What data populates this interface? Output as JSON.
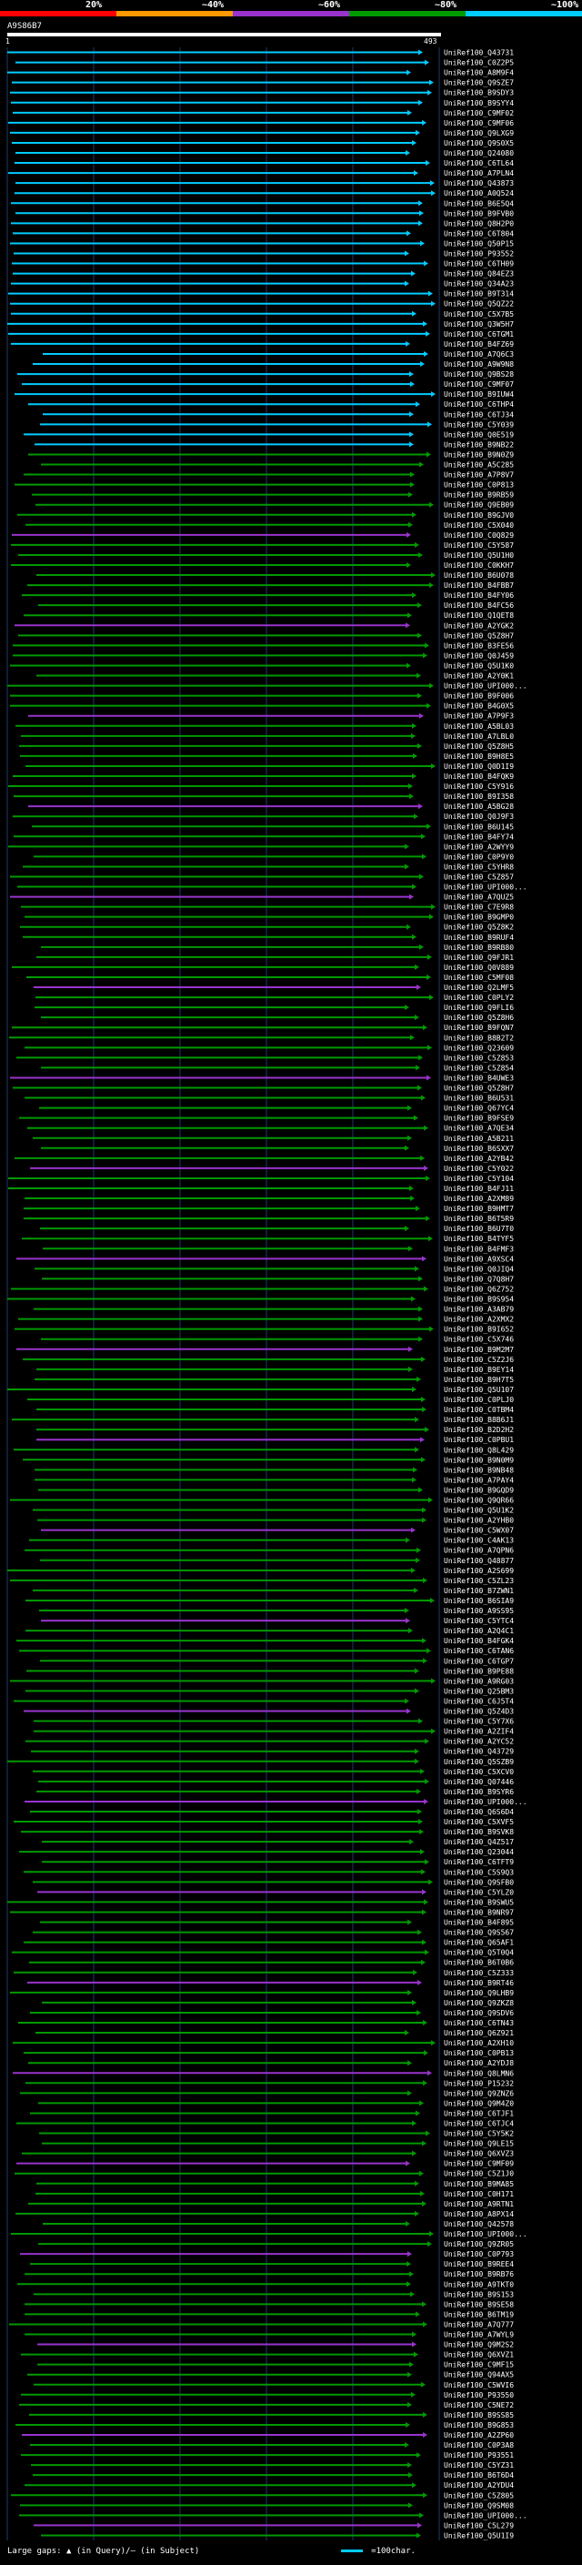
{
  "legend": {
    "labels": [
      "20%",
      "~40%",
      "~60%",
      "~80%",
      "~100%"
    ],
    "colors": [
      "#ff0000",
      "#ff9900",
      "#9933cc",
      "#009900",
      "#00ccff"
    ]
  },
  "query": {
    "id": "A9S86B7",
    "start": "1",
    "end": "493"
  },
  "hits": [
    "UniRef100_Q43731",
    "UniRef100_C0Z2P5",
    "UniRef100_A8M9F4",
    "UniRef100_Q9SZE7",
    "UniRef100_B9SDY3",
    "UniRef100_B9SYY4",
    "UniRef100_C9MF02",
    "UniRef100_C9MF06",
    "UniRef100_Q9LXG9",
    "UniRef100_Q9S0X5",
    "UniRef100_Q24080",
    "UniRef100_C6TL64",
    "UniRef100_A7PLN4",
    "UniRef100_Q43873",
    "UniRef100_A0Q524",
    "UniRef100_B6E5Q4",
    "UniRef100_B9FVB0",
    "UniRef100_Q8H2P0",
    "UniRef100_C6T804",
    "UniRef100_Q50P15",
    "UniRef100_P93552",
    "UniRef100_C6TH09",
    "UniRef100_Q84EZ3",
    "UniRef100_Q34A23",
    "UniRef100_B9T314",
    "UniRef100_Q5QZ22",
    "UniRef100_C5X7B5",
    "UniRef100_Q3W5H7",
    "UniRef100_C6TGM1",
    "UniRef100_B4FZ69",
    "UniRef100_A7Q6C3",
    "UniRef100_A9W9N8",
    "UniRef100_Q9BS28",
    "UniRef100_C9MF07",
    "UniRef100_B9IUW4",
    "UniRef100_C6THP4",
    "UniRef100_C6TJ34",
    "UniRef100_C5Y039",
    "UniRef100_Q0E519",
    "UniRef100_B9NB22",
    "UniRef100_B9N0Z9",
    "UniRef100_A5C285",
    "UniRef100_A7P8V7",
    "UniRef100_C0P813",
    "UniRef100_B9RB59",
    "UniRef100_Q9EB09",
    "UniRef100_B9GJV0",
    "UniRef100_C5X040",
    "UniRef100_C0Q829",
    "UniRef100_C5Y587",
    "UniRef100_Q5U1H0",
    "UniRef100_C0KKH7",
    "UniRef100_B6U078",
    "UniRef100_B4FBB7",
    "UniRef100_B4FY06",
    "UniRef100_B4FC56",
    "UniRef100_Q1QET8",
    "UniRef100_A2YGK2",
    "UniRef100_Q5Z8H7",
    "UniRef100_B3FE56",
    "UniRef100_Q0J459",
    "UniRef100_Q5U1K0",
    "UniRef100_A2Y0K1",
    "UniRef100_UPI000...",
    "UniRef100_B9F006",
    "UniRef100_B4G0X5",
    "UniRef100_A7P9F3",
    "UniRef100_A5BL03",
    "UniRef100_A7LBL0",
    "UniRef100_Q5Z8H5",
    "UniRef100_B9H8E5",
    "UniRef100_Q0D1I9",
    "UniRef100_B4FQK9",
    "UniRef100_C5Y916",
    "UniRef100_B9I358",
    "UniRef100_A5BG28",
    "UniRef100_Q0J9F3",
    "UniRef100_B6U145",
    "UniRef100_B4FY74",
    "UniRef100_A2WYY9",
    "UniRef100_C0P9Y0",
    "UniRef100_C5YHR8",
    "UniRef100_C5Z857",
    "UniRef100_UPI000...",
    "UniRef100_A7QUZ5",
    "UniRef100_C7E9R8",
    "UniRef100_B9GMP0",
    "UniRef100_Q5Z8K2",
    "UniRef100_B9RUF4",
    "UniRef100_B9RB80",
    "UniRef100_Q9FJR1",
    "UniRef100_Q0V889",
    "UniRef100_C5MF08",
    "UniRef100_Q2LMF5",
    "UniRef100_C0PLY2",
    "UniRef100_Q9FLI6",
    "UniRef100_Q5Z8H6",
    "UniRef100_B9FQN7",
    "UniRef100_B8B2T2",
    "UniRef100_Q23609",
    "UniRef100_C5Z853",
    "UniRef100_C5Z854",
    "UniRef100_B4UWE3",
    "UniRef100_Q5Z8H7",
    "UniRef100_B6U531",
    "UniRef100_Q67YC4",
    "UniRef100_B9FSE9",
    "UniRef100_A7QE34",
    "UniRef100_A5B211",
    "UniRef100_B6SXX7",
    "UniRef100_A2YB42",
    "UniRef100_C5Y022",
    "UniRef100_C5Y104",
    "UniRef100_B4FJ11",
    "UniRef100_A2XM89",
    "UniRef100_B9HMT7",
    "UniRef100_B6T5R9",
    "UniRef100_B6U7T0",
    "UniRef100_B4TYF5",
    "UniRef100_B4FMF3",
    "UniRef100_A9XSC4",
    "UniRef100_Q0JIQ4",
    "UniRef100_Q7Q8H7",
    "UniRef100_Q6Z752",
    "UniRef100_B9S954",
    "UniRef100_A3AB79",
    "UniRef100_A2XMX2",
    "UniRef100_B9I652",
    "UniRef100_C5X746",
    "UniRef100_B9M2M7",
    "UniRef100_C5Z2J6",
    "UniRef100_B9EY14",
    "UniRef100_B9H7T5",
    "UniRef100_Q5U107",
    "UniRef100_C0PLJ0",
    "UniRef100_C0TBM4",
    "UniRef100_B8B6J1",
    "UniRef100_B2D2H2",
    "UniRef100_C0PBU1",
    "UniRef100_Q8L429",
    "UniRef100_B9N0M9",
    "UniRef100_B9NB48",
    "UniRef100_A7PAY4",
    "UniRef100_B9GQD9",
    "UniRef100_Q9QR66",
    "UniRef100_Q5U1K2",
    "UniRef100_A2YHB0",
    "UniRef100_C5WX07",
    "UniRef100_C4AK13",
    "UniRef100_A7QPN6",
    "UniRef100_Q48877",
    "UniRef100_A2S699",
    "UniRef100_C5ZL23",
    "UniRef100_B7ZWN1",
    "UniRef100_B6SIA9",
    "UniRef100_A9SS95",
    "UniRef100_C5YTC4",
    "UniRef100_A2Q4C1",
    "UniRef100_B4FGK4",
    "UniRef100_C6TAN6",
    "UniRef100_C6TGP7",
    "UniRef100_B9PE88",
    "UniRef100_A9RG03",
    "UniRef100_Q25BM3",
    "UniRef100_C6J5T4",
    "UniRef100_Q5Z4D3",
    "UniRef100_C5Y7X6",
    "UniRef100_A2ZIF4",
    "UniRef100_A2YC52",
    "UniRef100_Q43729",
    "UniRef100_Q5SZB9",
    "UniRef100_C5XCV0",
    "UniRef100_Q07446",
    "UniRef100_B9SYR6",
    "UniRef100_UPI000...",
    "UniRef100_Q6S6D4",
    "UniRef100_C5XVF5",
    "UniRef100_B9SVK8",
    "UniRef100_Q4Z517",
    "UniRef100_Q23044",
    "UniRef100_C6TFT9",
    "UniRef100_C5S9Q3",
    "UniRef100_Q9SFB0",
    "UniRef100_C5YLZ0",
    "UniRef100_B9SWU5",
    "UniRef100_B9NR97",
    "UniRef100_B4F895",
    "UniRef100_Q9S567",
    "UniRef100_Q65AF1",
    "UniRef100_Q5T0Q4",
    "UniRef100_B6T0B6",
    "UniRef100_C5Z333",
    "UniRef100_B9RT46",
    "UniRef100_Q9LHB9",
    "UniRef100_Q9ZKZ8",
    "UniRef100_Q9SDV6",
    "UniRef100_C6TN43",
    "UniRef100_Q6Z921",
    "UniRef100_A2XH10",
    "UniRef100_C0PB13",
    "UniRef100_A2YDJ8",
    "UniRef100_Q8LMN6",
    "UniRef100_P15232",
    "UniRef100_Q9ZNZ6",
    "UniRef100_Q9M4Z0",
    "UniRef100_C6TJF1",
    "UniRef100_C6TJC4",
    "UniRef100_C5Y5K2",
    "UniRef100_Q9LE15",
    "UniRef100_Q6XVZ3",
    "UniRef100_C9MF09",
    "UniRef100_C5Z1J0",
    "UniRef100_B9MA85",
    "UniRef100_C0H171",
    "UniRef100_A9RTN1",
    "UniRef100_A8PX14",
    "UniRef100_Q42578",
    "UniRef100_UPI000...",
    "UniRef100_Q9ZR05",
    "UniRef100_C0P793",
    "UniRef100_B9REE4",
    "UniRef100_B9RB76",
    "UniRef100_A9TKT0",
    "UniRef100_B9S153",
    "UniRef100_B9SE58",
    "UniRef100_B6TM19",
    "UniRef100_A7Q777",
    "UniRef100_A7WYL9",
    "UniRef100_Q9M2S2",
    "UniRef100_Q6XVZ1",
    "UniRef100_C9MF15",
    "UniRef100_Q94AX5",
    "UniRef100_C5WVI6",
    "UniRef100_P93550",
    "UniRef100_C5NE72",
    "UniRef100_B9SS85",
    "UniRef100_B9G853",
    "UniRef100_A2ZP60",
    "UniRef100_C0P3A8",
    "UniRef100_P93551",
    "UniRef100_C5YZ31",
    "UniRef100_B6T6D4",
    "UniRef100_A2YDU4",
    "UniRef100_C5Z805",
    "UniRef100_Q9SM08",
    "UniRef100_UPI000...",
    "UniRef100_C5L279",
    "UniRef100_Q5U1I9"
  ],
  "footer": {
    "gaps_text": "Large gaps: ▲ (in Query)/– (in Subject)",
    "scale_text": "=100char."
  }
}
